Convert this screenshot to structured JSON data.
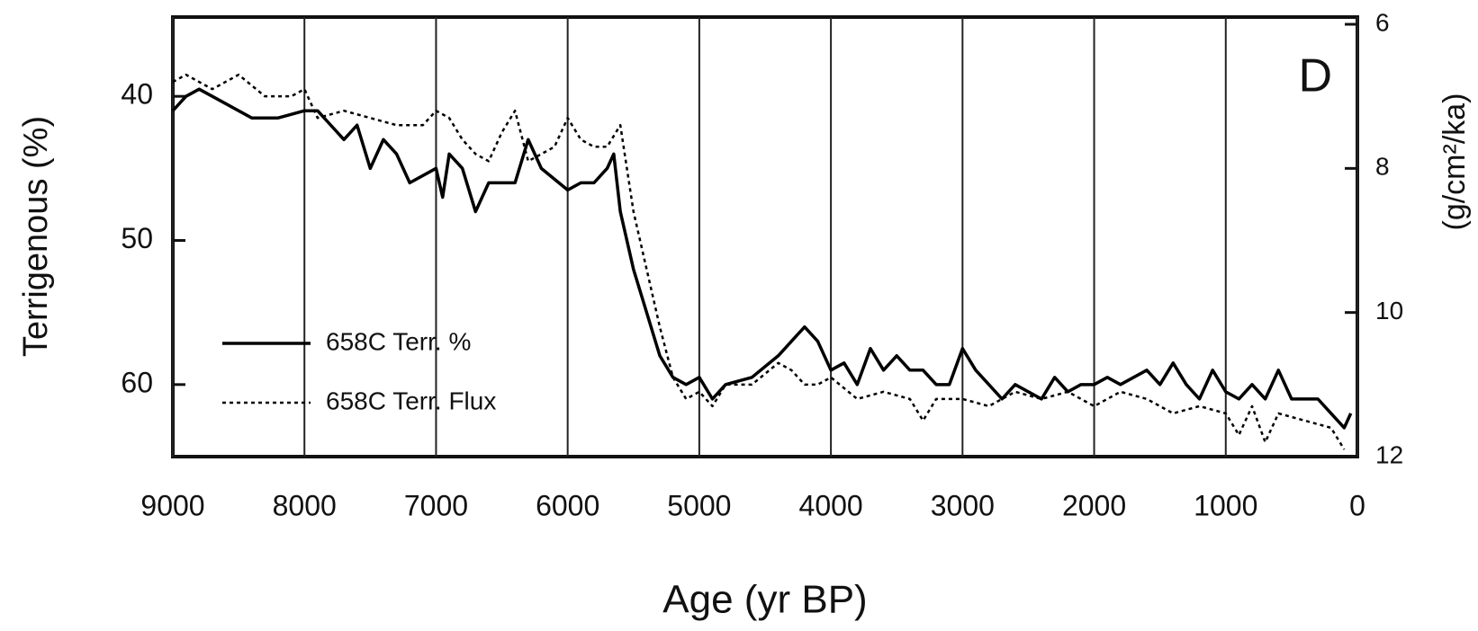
{
  "chart_data": {
    "type": "line",
    "panel_label": "D",
    "xlabel": "Age (yr BP)",
    "ylabel": "Terrigenous (%)",
    "y2label": "(g/cm²/ka)",
    "xlim": [
      9000,
      0
    ],
    "xticks": [
      9000,
      8000,
      7000,
      6000,
      5000,
      4000,
      3000,
      2000,
      1000,
      0
    ],
    "ylim": [
      65,
      34.5
    ],
    "yticks": [
      40,
      50,
      60
    ],
    "y2lim": [
      12,
      5.9
    ],
    "y2ticks": [
      6,
      8,
      10,
      12
    ],
    "grid": true,
    "legend": "lower left",
    "series": [
      {
        "name": "658C Terr. %",
        "color": "#000000",
        "style": "solid",
        "x": [
          9000,
          8900,
          8800,
          8600,
          8400,
          8200,
          8000,
          7900,
          7800,
          7700,
          7600,
          7500,
          7400,
          7300,
          7200,
          7000,
          6950,
          6900,
          6800,
          6700,
          6600,
          6400,
          6300,
          6200,
          6000,
          5900,
          5800,
          5700,
          5650,
          5600,
          5500,
          5400,
          5300,
          5200,
          5100,
          5000,
          4900,
          4800,
          4600,
          4400,
          4300,
          4200,
          4100,
          4000,
          3900,
          3800,
          3700,
          3600,
          3500,
          3400,
          3300,
          3200,
          3100,
          3000,
          2900,
          2800,
          2700,
          2600,
          2400,
          2300,
          2200,
          2100,
          2000,
          1900,
          1800,
          1700,
          1600,
          1500,
          1400,
          1300,
          1200,
          1100,
          1000,
          900,
          800,
          700,
          600,
          500,
          400,
          300,
          200,
          100,
          50
        ],
        "values": [
          41,
          40,
          39.5,
          40.5,
          41.5,
          41.5,
          41,
          41,
          42,
          43,
          42,
          45,
          43,
          44,
          46,
          45,
          47,
          44,
          45,
          48,
          46,
          46,
          43,
          45,
          46.5,
          46,
          46,
          45,
          44,
          48,
          52,
          55,
          58,
          59.5,
          60,
          59.5,
          61,
          60,
          59.5,
          58,
          57,
          56,
          57,
          59,
          58.5,
          60,
          57.5,
          59,
          58,
          59,
          59,
          60,
          60,
          57.5,
          59,
          60,
          61,
          60,
          61,
          59.5,
          60.5,
          60,
          60,
          59.5,
          60,
          59.5,
          59,
          60,
          58.5,
          60,
          61,
          59,
          60.5,
          61,
          60,
          61,
          59,
          61,
          61,
          61,
          62,
          63,
          62
        ]
      },
      {
        "name": "658C Terr. Flux",
        "color": "#000000",
        "style": "dotted",
        "axis": "y2",
        "x": [
          9000,
          8900,
          8700,
          8500,
          8300,
          8100,
          8000,
          7900,
          7700,
          7500,
          7300,
          7100,
          7000,
          6900,
          6800,
          6700,
          6600,
          6500,
          6400,
          6300,
          6200,
          6100,
          6000,
          5900,
          5800,
          5700,
          5600,
          5500,
          5400,
          5300,
          5200,
          5100,
          5000,
          4900,
          4800,
          4600,
          4400,
          4300,
          4200,
          4100,
          4000,
          3800,
          3600,
          3400,
          3300,
          3200,
          3000,
          2800,
          2600,
          2400,
          2200,
          2000,
          1800,
          1600,
          1400,
          1200,
          1000,
          900,
          800,
          700,
          600,
          400,
          200,
          100
        ],
        "values": [
          6.8,
          6.7,
          6.9,
          6.7,
          7.0,
          7.0,
          6.9,
          7.3,
          7.2,
          7.3,
          7.4,
          7.4,
          7.2,
          7.3,
          7.6,
          7.8,
          7.9,
          7.5,
          7.2,
          7.9,
          7.8,
          7.7,
          7.3,
          7.6,
          7.7,
          7.7,
          7.4,
          8.6,
          9.4,
          10.2,
          10.9,
          11.2,
          11.1,
          11.3,
          11.0,
          11.0,
          10.7,
          10.8,
          11.0,
          11.0,
          10.9,
          11.2,
          11.1,
          11.2,
          11.5,
          11.2,
          11.2,
          11.3,
          11.1,
          11.2,
          11.1,
          11.3,
          11.1,
          11.2,
          11.4,
          11.3,
          11.4,
          11.7,
          11.3,
          11.8,
          11.4,
          11.5,
          11.6,
          11.9
        ]
      }
    ]
  }
}
